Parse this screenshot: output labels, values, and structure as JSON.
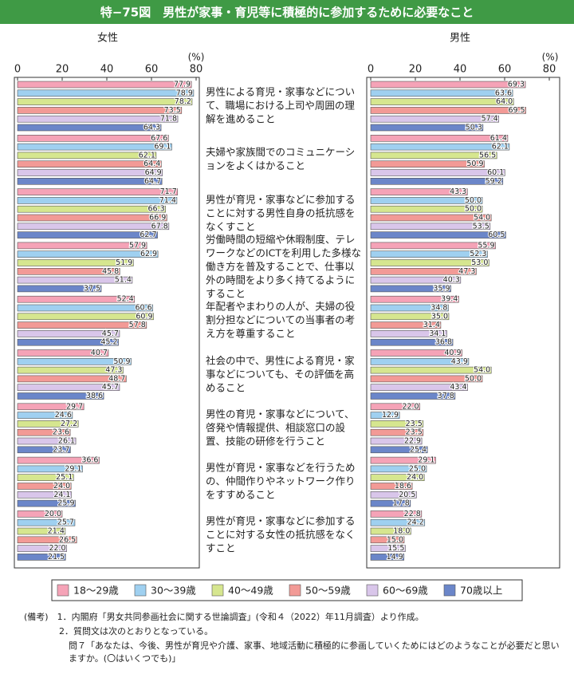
{
  "chart_data": {
    "type": "bar",
    "orientation": "horizontal",
    "title": "特−75図　男性が家事・育児等に積極的に参加するために必要なこと",
    "x_unit": "(%)",
    "xlim": [
      0,
      80
    ],
    "xticks": [
      0,
      20,
      40,
      60,
      80
    ],
    "categories": [
      "男性による育児・家事などについて、職場における上司や周囲の理解を進めること",
      "夫婦や家族間でのコミュニケーションをよくはかること",
      "男性が育児・家事などに参加することに対する男性自身の抵抗感をなくすこと",
      "労働時間の短縮や休暇制度、テレワークなどのICTを利用した多様な働き方を普及することで、仕事以外の時間をより多く持てるようにすること",
      "年配者やまわりの人が、夫婦の役割分担などについての当事者の考え方を尊重すること",
      "社会の中で、男性による育児・家事などについても、その評価を高めること",
      "男性の育児・家事などについて、啓発や情報提供、相談窓口の設置、技能の研修を行うこと",
      "男性が育児・家事などを行うための、仲間作りやネットワーク作りをすすめること",
      "男性が育児・家事などに参加することに対する女性の抵抗感をなくすこと"
    ],
    "series": [
      {
        "name": "18～29歳",
        "color": "#f5a3b7"
      },
      {
        "name": "30～39歳",
        "color": "#9fd0f0"
      },
      {
        "name": "40～49歳",
        "color": "#d6e68f"
      },
      {
        "name": "50～59歳",
        "color": "#f29a96"
      },
      {
        "name": "60～69歳",
        "color": "#d9c6ea"
      },
      {
        "name": "70歳以上",
        "color": "#6b86c9"
      }
    ],
    "panels": [
      {
        "title": "女性",
        "values": [
          [
            77.9,
            67.6,
            71.7,
            57.9,
            52.4,
            40.7,
            29.7,
            36.6,
            20.0
          ],
          [
            78.9,
            69.1,
            71.4,
            62.9,
            60.6,
            50.9,
            24.6,
            29.1,
            25.7
          ],
          [
            78.2,
            62.1,
            66.3,
            51.9,
            60.9,
            47.3,
            27.2,
            25.1,
            21.4
          ],
          [
            73.5,
            64.4,
            66.9,
            45.8,
            57.8,
            48.7,
            23.6,
            24.0,
            26.5
          ],
          [
            71.8,
            64.9,
            67.8,
            51.4,
            45.7,
            45.7,
            26.1,
            24.1,
            22.0
          ],
          [
            64.3,
            64.7,
            62.7,
            37.5,
            45.2,
            38.6,
            23.7,
            25.9,
            21.5
          ]
        ],
        "value_labels": [
          [
            "77.9",
            "67.6",
            "71.7",
            "57.9",
            "52.4",
            "40.7",
            "29.7",
            "36.6",
            "20.0"
          ],
          [
            "78.9",
            "69.1",
            "71.4",
            "62.9",
            "60.6",
            "50.9",
            "24.6",
            "29.1",
            "25.7"
          ],
          [
            "78.2",
            "62.1",
            "66.3",
            "51.9",
            "60.9",
            "47.3",
            "27.2",
            "25.1",
            "21.4"
          ],
          [
            "73.5",
            "64.4",
            "66.9",
            "45.8",
            "57.8",
            "48.7",
            "23.6",
            "24.0",
            "26.5"
          ],
          [
            "71.8",
            "64.9",
            "67.8",
            "51.4",
            "45.7",
            "45.7",
            "26.1",
            "24.1",
            "22.0"
          ],
          [
            "64.3",
            "64.7",
            "62.7",
            "37.5",
            "45.2",
            "38.6",
            "23.7",
            "25.9",
            "21.5"
          ]
        ]
      },
      {
        "title": "男性",
        "values": [
          [
            69.3,
            61.4,
            43.3,
            55.9,
            39.4,
            40.9,
            22.0,
            29.1,
            22.8
          ],
          [
            63.6,
            62.1,
            50.0,
            52.3,
            34.8,
            43.9,
            12.9,
            25.0,
            24.2
          ],
          [
            64.0,
            56.5,
            50.0,
            53.0,
            35.0,
            54.0,
            23.5,
            24.0,
            18.0
          ],
          [
            69.5,
            50.9,
            54.0,
            47.3,
            31.4,
            50.0,
            23.5,
            18.6,
            15.0
          ],
          [
            57.4,
            60.1,
            53.5,
            40.3,
            34.1,
            43.4,
            22.9,
            20.5,
            15.5
          ],
          [
            50.3,
            59.2,
            60.5,
            35.9,
            36.8,
            37.8,
            25.4,
            17.8,
            14.9
          ]
        ],
        "value_labels": [
          [
            "69.3",
            "61.4",
            "43.3",
            "55.9",
            "39.4",
            "40.9",
            "22.0",
            "29.1",
            "22.8"
          ],
          [
            "63.6",
            "62.1",
            "50.0",
            "52.3",
            "34.8",
            "43.9",
            "12.9",
            "25.0",
            "24.2"
          ],
          [
            "64.0",
            "56.5",
            "50.0",
            "53.0",
            "35.0",
            "54.0",
            "23.5",
            "24.0",
            "18.0"
          ],
          [
            "69.5",
            "50.9",
            "54.0",
            "47.3",
            "31.4",
            "50.0",
            "23.5",
            "18.6",
            "15.0"
          ],
          [
            "57.4",
            "60.1",
            "53.5",
            "40.3",
            "34.1",
            "43.4",
            "22.9",
            "20.5",
            "15.5"
          ],
          [
            "50.3",
            "59.2",
            "60.5",
            "35.9",
            "36.8",
            "37.8",
            "25.4",
            "17.8",
            "14.9"
          ]
        ]
      }
    ],
    "notes": [
      "(備考)　1．内閣府「男女共同参画社会に関する世論調査」(令和４（2022）年11月調査）より作成。",
      "2．質問文は次のとおりとなっている。",
      "問７「あなたは、今後、男性が育児や介護、家事、地域活動に積極的に参画していくためにはどのようなことが必要だと思いますか。(〇はいくつでも)」"
    ]
  }
}
